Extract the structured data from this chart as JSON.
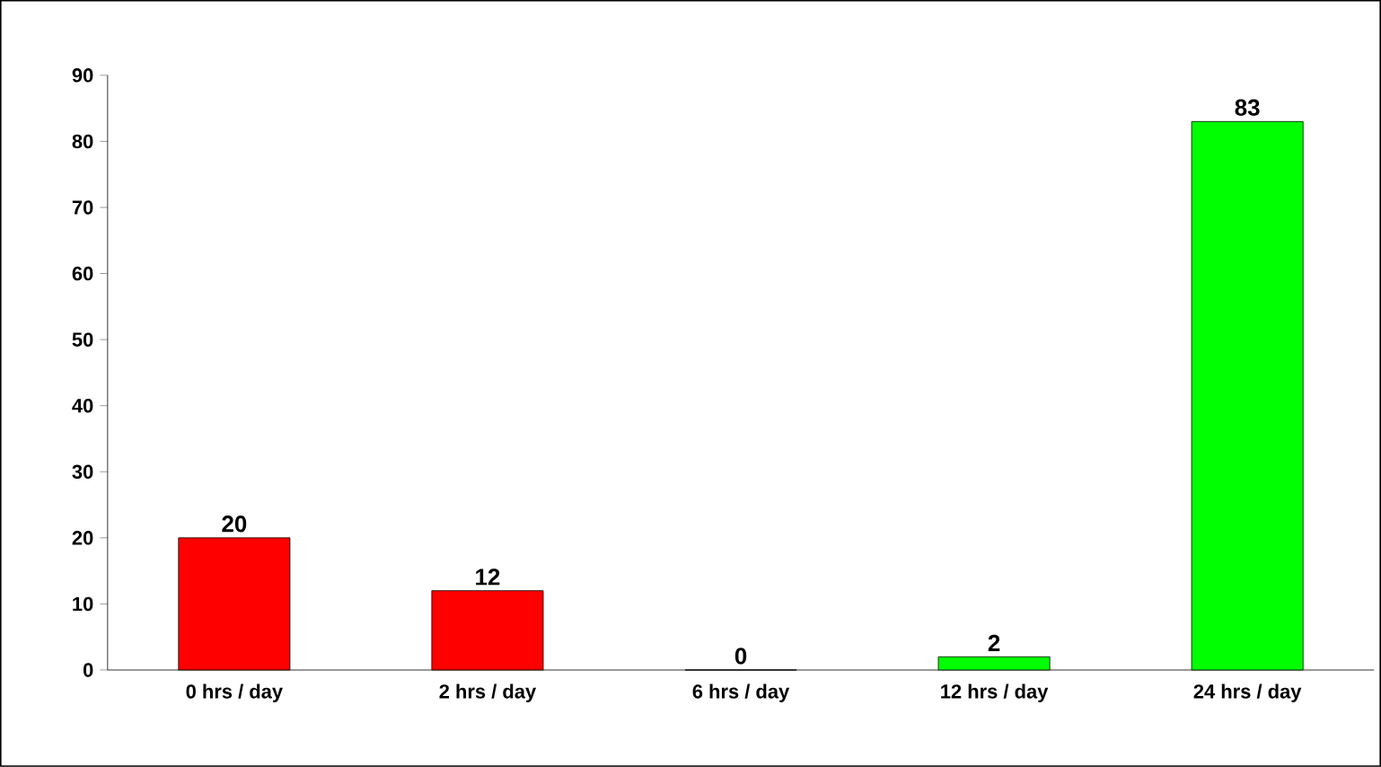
{
  "chart_data": {
    "type": "bar",
    "categories": [
      "0 hrs / day",
      "2 hrs / day",
      "6 hrs / day",
      "12 hrs / day",
      "24 hrs / day"
    ],
    "values": [
      20,
      12,
      0,
      2,
      83
    ],
    "colors": [
      "#ff0000",
      "#ff0000",
      "#ff0000",
      "#00ff00",
      "#00ff00"
    ],
    "ylim": [
      0,
      90
    ],
    "yticks": [
      0,
      10,
      20,
      30,
      40,
      50,
      60,
      70,
      80,
      90
    ],
    "data_labels": true
  }
}
